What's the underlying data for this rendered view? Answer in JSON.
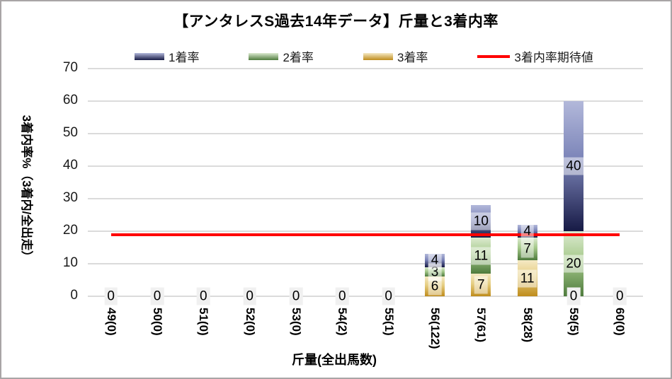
{
  "chart_data": {
    "type": "bar",
    "stacked": true,
    "title": "【アンタレスS過去14年データ】斤量と3着内率",
    "xlabel": "斤量(全出馬数)",
    "ylabel": "3着内率%（3着内/全出走）",
    "ylim": [
      0,
      70
    ],
    "yticks": [
      0,
      10,
      20,
      30,
      40,
      50,
      60,
      70
    ],
    "grid": true,
    "legend_position": "top",
    "categories": [
      "49(0)",
      "50(0)",
      "51(0)",
      "52(0)",
      "53(0)",
      "54(2)",
      "55(1)",
      "56(122)",
      "57(61)",
      "58(28)",
      "59(5)",
      "60(0)"
    ],
    "series": [
      {
        "name": "1着率",
        "values": [
          0,
          0,
          0,
          0,
          0,
          0,
          0,
          4,
          10,
          4,
          40,
          0
        ],
        "color_top": "#b2b8da",
        "color_mid": "#7b84b8",
        "color_bottom": "#171a45"
      },
      {
        "name": "2着率",
        "values": [
          0,
          0,
          0,
          0,
          0,
          0,
          0,
          3,
          11,
          7,
          20,
          0
        ],
        "color_top": "#dcead0",
        "color_mid": "#a5c98a",
        "color_bottom": "#4e7b3d"
      },
      {
        "name": "3着率",
        "values": [
          0,
          0,
          0,
          0,
          0,
          0,
          0,
          6,
          7,
          11,
          0,
          0
        ],
        "color_top": "#f5e9c4",
        "color_mid": "#e5cd80",
        "color_bottom": "#bf8c1c"
      }
    ],
    "stack_bottom_to_top": [
      "3着率",
      "2着率",
      "1着率"
    ],
    "line": {
      "name": "3着内率期待値",
      "value": 19,
      "color": "#ff0000"
    },
    "gridline_color": "#dbdbdb"
  }
}
